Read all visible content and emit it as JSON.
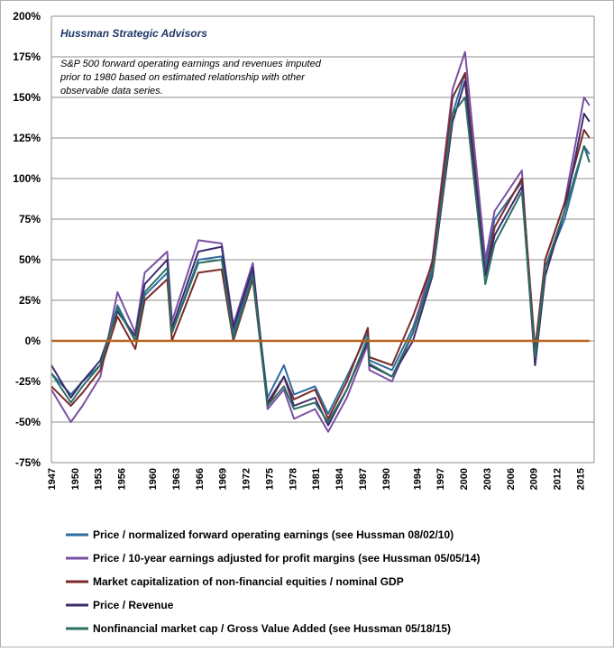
{
  "chart_data": {
    "type": "line",
    "title": "",
    "annotations": {
      "source": "Hussman Strategic Advisors",
      "note_lines": [
        "S&P 500 forward  operating earnings and revenues imputed",
        "prior to 1980 based on estimated relationship with other",
        "observable data series."
      ]
    },
    "xlabel": "",
    "ylabel": "",
    "xlim": [
      1947,
      2016.8
    ],
    "ylim": [
      -75,
      200
    ],
    "x_ticks": [
      1947,
      1950,
      1953,
      1956,
      1960,
      1963,
      1966,
      1969,
      1972,
      1975,
      1978,
      1981,
      1984,
      1987,
      1990,
      1994,
      1997,
      2000,
      2003,
      2006,
      2009,
      2012,
      2015
    ],
    "y_ticks": [
      -75,
      -50,
      -25,
      0,
      25,
      50,
      75,
      100,
      125,
      150,
      175,
      200
    ],
    "y_tick_labels": [
      "-75%",
      "-50%",
      "-25%",
      "0%",
      "25%",
      "50%",
      "75%",
      "100%",
      "125%",
      "150%",
      "175%",
      "200%"
    ],
    "grid": "horizontal",
    "legend_position": "bottom",
    "reference_line": {
      "y": 0,
      "color": "#b8621b"
    },
    "series": [
      {
        "name": "Price / normalized forward operating earnings (see Hussman 08/02/10)",
        "color": "#2e6da4",
        "x": [
          1947,
          1949.5,
          1951,
          1953.3,
          1955.5,
          1957.8,
          1959,
          1961.9,
          1962.5,
          1965.9,
          1968.9,
          1970.4,
          1972.9,
          1974.8,
          1976.9,
          1978.2,
          1980.9,
          1982.6,
          1985,
          1987.7,
          1987.9,
          1990.8,
          1993.5,
          1996,
          1998.6,
          2000.2,
          2002.8,
          2004,
          2007.5,
          2009.2,
          2010.5,
          2013,
          2015.5,
          2016.2
        ],
        "y": [
          -20,
          -33,
          -25,
          -15,
          22,
          0,
          28,
          42,
          5,
          50,
          52,
          5,
          43,
          -35,
          -15,
          -33,
          -28,
          -45,
          -22,
          5,
          -12,
          -18,
          8,
          45,
          140,
          165,
          45,
          75,
          98,
          -12,
          45,
          75,
          120,
          115
        ]
      },
      {
        "name": "Price / 10-year earnings adjusted for profit margins (see Hussman 05/05/14)",
        "color": "#7a4fa3",
        "x": [
          1947,
          1949.5,
          1951,
          1953.3,
          1955.5,
          1957.8,
          1959,
          1961.9,
          1962.5,
          1965.9,
          1968.9,
          1970.4,
          1972.9,
          1974.8,
          1976.9,
          1978.2,
          1980.9,
          1982.6,
          1985,
          1987.7,
          1987.9,
          1990.8,
          1993.5,
          1996,
          1998.6,
          2000.2,
          2002.8,
          2004,
          2007.5,
          2009.2,
          2010.5,
          2013,
          2015.5,
          2016.2
        ],
        "y": [
          -30,
          -50,
          -40,
          -22,
          30,
          5,
          42,
          55,
          12,
          62,
          60,
          10,
          48,
          -42,
          -30,
          -48,
          -42,
          -56,
          -35,
          -2,
          -18,
          -25,
          5,
          50,
          155,
          178,
          50,
          80,
          105,
          -15,
          50,
          85,
          150,
          145
        ]
      },
      {
        "name": "Market capitalization of non-financial equities / nominal GDP",
        "color": "#7b2a2a",
        "x": [
          1947,
          1949.5,
          1951,
          1953.3,
          1955.5,
          1957.8,
          1959,
          1961.9,
          1962.5,
          1965.9,
          1968.9,
          1970.4,
          1972.9,
          1974.8,
          1976.9,
          1978.2,
          1980.9,
          1982.6,
          1985,
          1987.7,
          1987.9,
          1990.8,
          1993.5,
          1996,
          1998.6,
          2000.2,
          2002.8,
          2004,
          2007.5,
          2009.2,
          2010.5,
          2013,
          2015.5,
          2016.2
        ],
        "y": [
          -28,
          -40,
          -32,
          -18,
          15,
          -5,
          25,
          38,
          0,
          42,
          44,
          0,
          38,
          -40,
          -22,
          -36,
          -30,
          -48,
          -25,
          8,
          -10,
          -15,
          15,
          48,
          150,
          165,
          40,
          70,
          100,
          -5,
          50,
          85,
          130,
          125
        ]
      },
      {
        "name": "Price / Revenue",
        "color": "#3d2a6b",
        "x": [
          1947,
          1949.5,
          1951,
          1953.3,
          1955.5,
          1957.8,
          1959,
          1961.9,
          1962.5,
          1965.9,
          1968.9,
          1970.4,
          1972.9,
          1974.8,
          1976.9,
          1978.2,
          1980.9,
          1982.6,
          1985,
          1987.7,
          1987.9,
          1990.8,
          1993.5,
          1996,
          1998.6,
          2000.2,
          2002.8,
          2004,
          2007.5,
          2009.2,
          2010.5,
          2013,
          2015.5,
          2016.2
        ],
        "y": [
          -15,
          -35,
          -25,
          -12,
          18,
          3,
          35,
          50,
          8,
          55,
          58,
          8,
          45,
          -38,
          -22,
          -40,
          -35,
          -52,
          -30,
          0,
          -15,
          -22,
          0,
          40,
          135,
          160,
          40,
          65,
          95,
          -15,
          40,
          80,
          140,
          135
        ]
      },
      {
        "name": "Nonfinancial market cap / Gross Value Added (see Hussman 05/18/15)",
        "color": "#2b6e62",
        "x": [
          1947,
          1949.5,
          1951,
          1953.3,
          1955.5,
          1957.8,
          1959,
          1961.9,
          1962.5,
          1965.9,
          1968.9,
          1970.4,
          1972.9,
          1974.8,
          1976.9,
          1978.2,
          1980.9,
          1982.6,
          1985,
          1987.7,
          1987.9,
          1990.8,
          1993.5,
          1996,
          1998.6,
          2000.2,
          2002.8,
          2004,
          2007.5,
          2009.2,
          2010.5,
          2013,
          2015.5,
          2016.2
        ],
        "y": [
          -20,
          -38,
          -28,
          -15,
          20,
          0,
          30,
          45,
          5,
          48,
          50,
          2,
          40,
          -40,
          -28,
          -42,
          -38,
          -50,
          -30,
          2,
          -14,
          -22,
          5,
          42,
          140,
          150,
          35,
          60,
          92,
          -10,
          45,
          80,
          120,
          110
        ]
      }
    ]
  }
}
